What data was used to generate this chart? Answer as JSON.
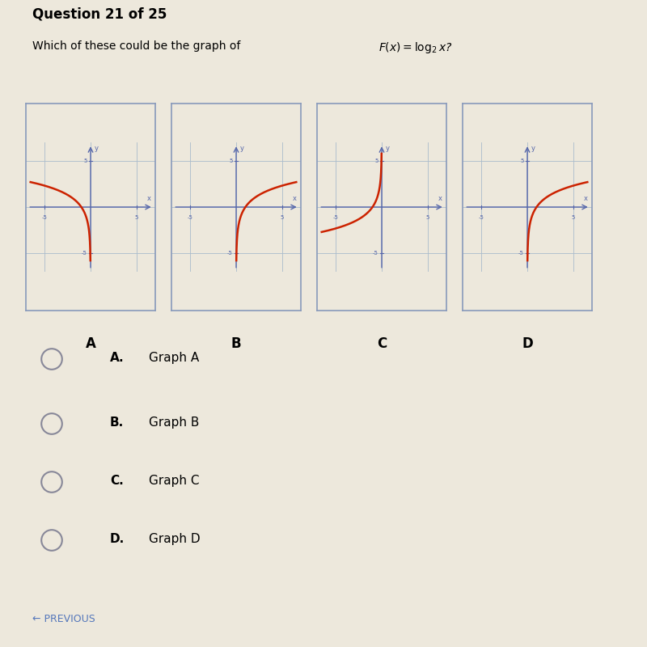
{
  "title": "Question 21 of 25",
  "question_text": "Which of these could be the graph of ",
  "bg_color": "#ede8dc",
  "graph_bg": "#ccd9e8",
  "axis_color": "#5566aa",
  "curve_color": "#cc2200",
  "grid_color": "#aabbcc",
  "border_color": "#8899bb",
  "answer_choices": [
    [
      "A.",
      "Graph A"
    ],
    [
      "B.",
      "Graph B"
    ],
    [
      "C.",
      "Graph C"
    ],
    [
      "D.",
      "Graph D"
    ]
  ],
  "graph_labels": [
    "A",
    "B",
    "C",
    "D"
  ],
  "xlim": [
    -7,
    7
  ],
  "ylim": [
    -7,
    7
  ],
  "graph_types": [
    "log2_neg_x",
    "log2_pos_x_steep",
    "neg_log2_neg_x",
    "log2_pos_x_flat"
  ],
  "prev_text": "← PREVIOUS",
  "prev_color": "#5577bb"
}
